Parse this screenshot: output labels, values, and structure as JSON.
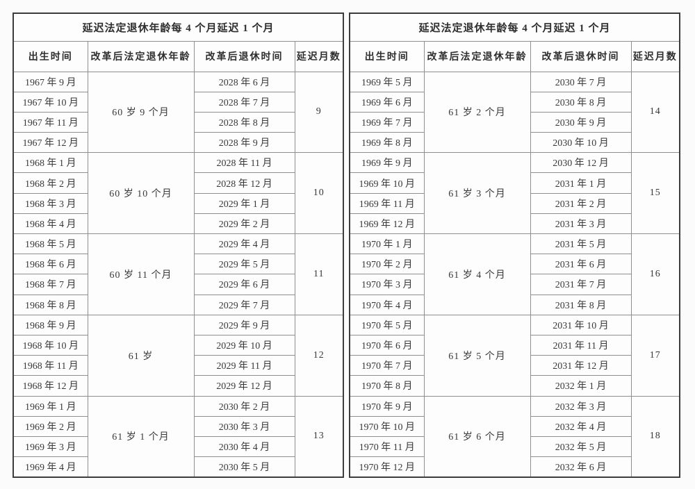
{
  "title": "延迟法定退休年龄每 4 个月延迟 1 个月",
  "columns": [
    "出生时间",
    "改革后法定退休年龄",
    "改革后退休时间",
    "延迟月数"
  ],
  "colors": {
    "page_background": "#fbfbfb",
    "table_background": "#fdfdfd",
    "text": "#383838",
    "border_outer": "#3c3c3c",
    "border_inner": "#8f8f8f"
  },
  "tables": [
    {
      "groups": [
        {
          "age": "60 岁 9 个月",
          "delay": "9",
          "rows": [
            {
              "birth": "1967 年 9 月",
              "retire": "2028 年 6 月"
            },
            {
              "birth": "1967 年 10 月",
              "retire": "2028 年 7 月"
            },
            {
              "birth": "1967 年 11 月",
              "retire": "2028 年 8 月"
            },
            {
              "birth": "1967 年 12 月",
              "retire": "2028 年 9 月"
            }
          ]
        },
        {
          "age": "60 岁 10 个月",
          "delay": "10",
          "rows": [
            {
              "birth": "1968 年 1 月",
              "retire": "2028 年 11 月"
            },
            {
              "birth": "1968 年 2 月",
              "retire": "2028 年 12 月"
            },
            {
              "birth": "1968 年 3 月",
              "retire": "2029 年 1 月"
            },
            {
              "birth": "1968 年 4 月",
              "retire": "2029 年 2 月"
            }
          ]
        },
        {
          "age": "60 岁 11 个月",
          "delay": "11",
          "rows": [
            {
              "birth": "1968 年 5 月",
              "retire": "2029 年 4 月"
            },
            {
              "birth": "1968 年 6 月",
              "retire": "2029 年 5 月"
            },
            {
              "birth": "1968 年 7 月",
              "retire": "2029 年 6 月"
            },
            {
              "birth": "1968 年 8 月",
              "retire": "2029 年 7 月"
            }
          ]
        },
        {
          "age": "61 岁",
          "delay": "12",
          "rows": [
            {
              "birth": "1968 年 9 月",
              "retire": "2029 年 9 月"
            },
            {
              "birth": "1968 年 10 月",
              "retire": "2029 年 10 月"
            },
            {
              "birth": "1968 年 11 月",
              "retire": "2029 年 11 月"
            },
            {
              "birth": "1968 年 12 月",
              "retire": "2029 年 12 月"
            }
          ]
        },
        {
          "age": "61 岁 1 个月",
          "delay": "13",
          "rows": [
            {
              "birth": "1969 年 1 月",
              "retire": "2030 年 2 月"
            },
            {
              "birth": "1969 年 2 月",
              "retire": "2030 年 3 月"
            },
            {
              "birth": "1969 年 3 月",
              "retire": "2030 年 4 月"
            },
            {
              "birth": "1969 年 4 月",
              "retire": "2030 年 5 月"
            }
          ]
        }
      ]
    },
    {
      "groups": [
        {
          "age": "61 岁 2 个月",
          "delay": "14",
          "rows": [
            {
              "birth": "1969 年 5 月",
              "retire": "2030 年 7 月"
            },
            {
              "birth": "1969 年 6 月",
              "retire": "2030 年 8 月"
            },
            {
              "birth": "1969 年 7 月",
              "retire": "2030 年 9 月"
            },
            {
              "birth": "1969 年 8 月",
              "retire": "2030 年 10 月"
            }
          ]
        },
        {
          "age": "61 岁 3 个月",
          "delay": "15",
          "rows": [
            {
              "birth": "1969 年 9 月",
              "retire": "2030 年 12 月"
            },
            {
              "birth": "1969 年 10 月",
              "retire": "2031 年 1 月"
            },
            {
              "birth": "1969 年 11 月",
              "retire": "2031 年 2 月"
            },
            {
              "birth": "1969 年 12 月",
              "retire": "2031 年 3 月"
            }
          ]
        },
        {
          "age": "61 岁 4 个月",
          "delay": "16",
          "rows": [
            {
              "birth": "1970 年 1 月",
              "retire": "2031 年 5 月"
            },
            {
              "birth": "1970 年 2 月",
              "retire": "2031 年 6 月"
            },
            {
              "birth": "1970 年 3 月",
              "retire": "2031 年 7 月"
            },
            {
              "birth": "1970 年 4 月",
              "retire": "2031 年 8 月"
            }
          ]
        },
        {
          "age": "61 岁 5 个月",
          "delay": "17",
          "rows": [
            {
              "birth": "1970 年 5 月",
              "retire": "2031 年 10 月"
            },
            {
              "birth": "1970 年 6 月",
              "retire": "2031 年 11 月"
            },
            {
              "birth": "1970 年 7 月",
              "retire": "2031 年 12 月"
            },
            {
              "birth": "1970 年 8 月",
              "retire": "2032 年 1 月"
            }
          ]
        },
        {
          "age": "61 岁 6 个月",
          "delay": "18",
          "rows": [
            {
              "birth": "1970 年 9 月",
              "retire": "2032 年 3 月"
            },
            {
              "birth": "1970 年 10 月",
              "retire": "2032 年 4 月"
            },
            {
              "birth": "1970 年 11 月",
              "retire": "2032 年 5 月"
            },
            {
              "birth": "1970 年 12 月",
              "retire": "2032 年 6 月"
            }
          ]
        }
      ]
    }
  ]
}
